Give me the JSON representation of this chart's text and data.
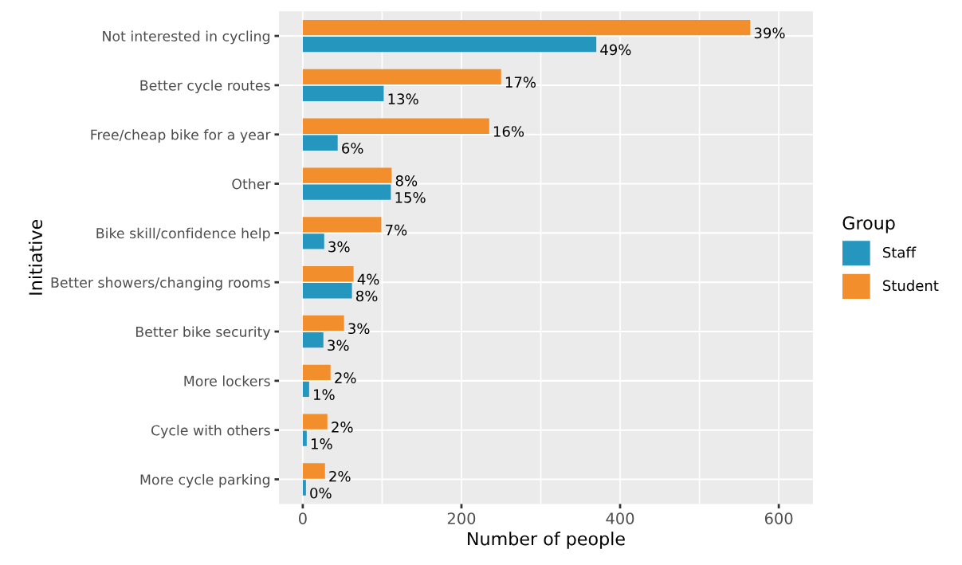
{
  "chart_data": {
    "type": "bar",
    "orientation": "horizontal",
    "xlabel": "Number of people",
    "ylabel": "Initiative",
    "legend_title": "Group",
    "legend": "right",
    "grid": true,
    "categories": [
      "Not interested in cycling",
      "Better cycle routes",
      "Free/cheap bike for a year",
      "Other",
      "Bike skill/confidence help",
      "Better showers/changing rooms",
      "Better bike security",
      "More lockers",
      "Cycle with others",
      "More cycle parking"
    ],
    "xlim": [
      -30,
      643
    ],
    "xticks": [
      0,
      200,
      400,
      600
    ],
    "series": [
      {
        "name": "Staff",
        "color": "#2596be",
        "values": [
          370,
          102,
          44,
          111,
          27,
          62,
          26,
          8,
          5,
          4
        ]
      },
      {
        "name": "Student",
        "color": "#f28e2b",
        "values": [
          564,
          250,
          235,
          112,
          99,
          64,
          52,
          35,
          31,
          28
        ]
      }
    ],
    "annotations": [
      {
        "text": "49%",
        "x": 370,
        "y": "Not interested in cycling"
      },
      {
        "text": "13%",
        "x": 102,
        "y": "Better cycle routes"
      },
      {
        "text": "6%",
        "x": 44,
        "y": "Free/cheap bike for a year"
      },
      {
        "text": "15%",
        "x": 111,
        "y": "Other"
      },
      {
        "text": "3%",
        "x": 27,
        "y": "Bike skill/confidence help"
      },
      {
        "text": "8%",
        "x": 62,
        "y": "Better showers/changing rooms"
      },
      {
        "text": "3%",
        "x": 26,
        "y": "Better bike security"
      },
      {
        "text": "1%",
        "x": 8,
        "y": "More lockers"
      },
      {
        "text": "1%",
        "x": 5,
        "y": "Cycle with others"
      },
      {
        "text": "0%",
        "x": 4,
        "y": "More cycle parking"
      },
      {
        "text": "39%",
        "x": 564,
        "y": "Not interested in cycling"
      },
      {
        "text": "17%",
        "x": 250,
        "y": "Better cycle routes"
      },
      {
        "text": "16%",
        "x": 235,
        "y": "Free/cheap bike for a year"
      },
      {
        "text": "8%",
        "x": 112,
        "y": "Other"
      },
      {
        "text": "7%",
        "x": 99,
        "y": "Bike skill/confidence help"
      },
      {
        "text": "4%",
        "x": 64,
        "y": "Better showers/changing rooms"
      },
      {
        "text": "3%",
        "x": 52,
        "y": "Better bike security"
      },
      {
        "text": "2%",
        "x": 35,
        "y": "More lockers"
      },
      {
        "text": "2%",
        "x": 31,
        "y": "Cycle with others"
      },
      {
        "text": "2%",
        "x": 28,
        "y": "More cycle parking"
      }
    ]
  }
}
